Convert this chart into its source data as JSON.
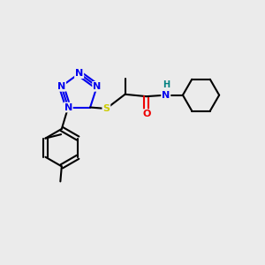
{
  "bg_color": "#ebebeb",
  "atom_colors": {
    "C": "#000000",
    "N": "#0000ee",
    "O": "#ee0000",
    "S": "#cccc00",
    "H": "#008080"
  },
  "bond_color": "#000000",
  "font_size": 8.0,
  "font_size_small": 7.0
}
